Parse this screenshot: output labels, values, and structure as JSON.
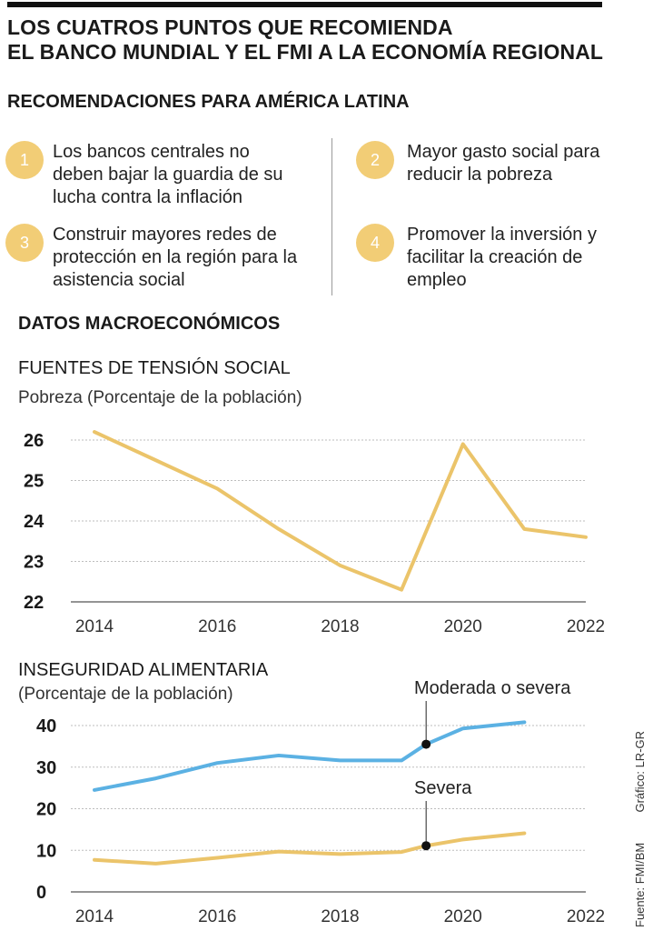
{
  "header": {
    "title_line1": "LOS CUATROS PUNTOS QUE RECOMIENDA",
    "title_line2": "EL BANCO MUNDIAL Y EL FMI A LA ECONOMÍA REGIONAL",
    "subtitle": "RECOMENDACIONES PARA AMÉRICA LATINA"
  },
  "recommendations": [
    {
      "number": "1",
      "lines": [
        "Los bancos centrales no",
        "deben bajar la guardia de su",
        "lucha contra la inflación"
      ]
    },
    {
      "number": "2",
      "lines": [
        "Mayor gasto social para",
        "reducir la pobreza"
      ]
    },
    {
      "number": "3",
      "lines": [
        "Construir mayores redes de",
        "protección en la región para la",
        "asistencia social"
      ]
    },
    {
      "number": "4",
      "lines": [
        "Promover la inversión y",
        "facilitar la creación de",
        "empleo"
      ]
    }
  ],
  "section_title": "DATOS MACROECONÓMICOS",
  "chart_data": [
    {
      "type": "line",
      "title": "FUENTES DE TENSIÓN SOCIAL",
      "subtitle": "Pobreza (Porcentaje de la población)",
      "x": [
        2014,
        2015,
        2016,
        2017,
        2018,
        2019,
        2020,
        2021,
        2022
      ],
      "x_ticks": [
        "2014",
        "2016",
        "2018",
        "2020",
        "2022"
      ],
      "y_ticks": [
        "22",
        "23",
        "24",
        "25",
        "26"
      ],
      "ylim": [
        22,
        26
      ],
      "xlim": [
        2014,
        2022
      ],
      "grid": true,
      "series": [
        {
          "values": [
            26.2,
            25.5,
            24.8,
            23.8,
            22.9,
            22.3,
            25.9,
            23.8,
            23.6
          ],
          "color": "#ebc46a"
        }
      ]
    },
    {
      "type": "line",
      "title": "INSEGURIDAD ALIMENTARIA",
      "subtitle": "(Porcentaje de la población)",
      "x": [
        2014,
        2015,
        2016,
        2017,
        2018,
        2019,
        2019.4,
        2020,
        2021
      ],
      "x_ticks": [
        "2014",
        "2016",
        "2018",
        "2020",
        "2022"
      ],
      "y_ticks": [
        "0",
        "10",
        "20",
        "30",
        "40"
      ],
      "ylim": [
        0,
        40
      ],
      "xlim": [
        2014,
        2022
      ],
      "grid": true,
      "series": [
        {
          "name": "Moderada o severa",
          "values": [
            24.5,
            27.3,
            31,
            32.8,
            31.6,
            31.6,
            35.5,
            39.3,
            40.8
          ],
          "color": "#5bb1e3",
          "marker_x": 2019.4,
          "marker_y": 35.5
        },
        {
          "name": "Severa",
          "values": [
            7.7,
            6.8,
            8.2,
            9.7,
            9.1,
            9.6,
            11.1,
            12.6,
            14.1
          ],
          "color": "#ebc46a",
          "marker_x": 2019.4,
          "marker_y": 11.1
        }
      ]
    }
  ],
  "credits": {
    "source": "Fuente: FMI/BM",
    "graphic": "Gráfico: LR-GR"
  }
}
